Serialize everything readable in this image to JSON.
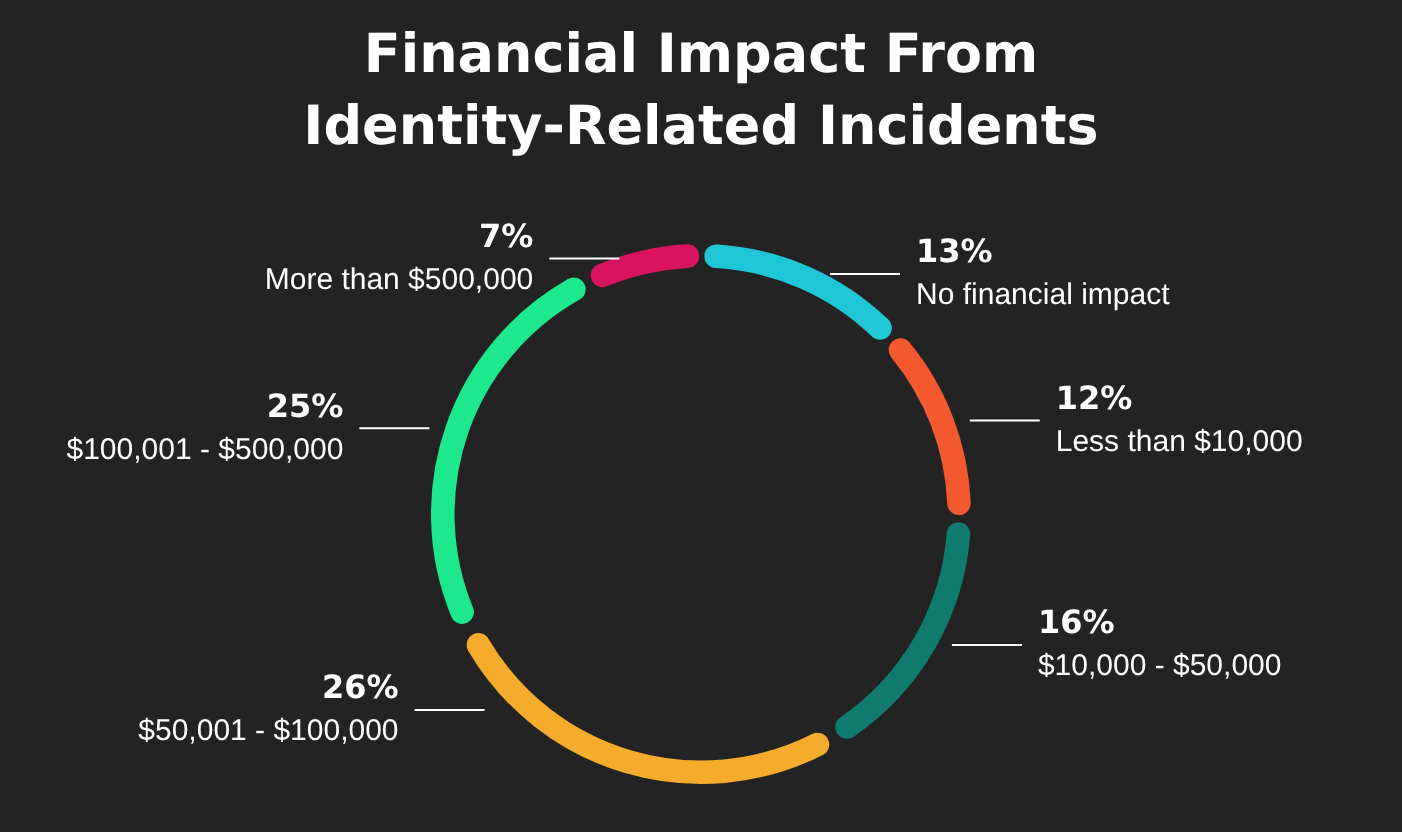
{
  "chart_data": {
    "type": "donut",
    "title": "Financial Impact From Identity-Related Incidents",
    "categories": [
      "No financial impact",
      "Less than $10,000",
      "$10,000 - $50,000",
      "$50,001 - $100,000",
      "$100,001 - $500,000",
      "More than $500,000"
    ],
    "values": [
      13,
      12,
      16,
      26,
      25,
      7
    ],
    "value_labels": [
      "13%",
      "12%",
      "16%",
      "26%",
      "25%",
      "7%"
    ],
    "colors": [
      "#1fc6d6",
      "#f4582e",
      "#0f7a6e",
      "#f5ab2b",
      "#1de88c",
      "#d8135f"
    ],
    "legend": false
  }
}
